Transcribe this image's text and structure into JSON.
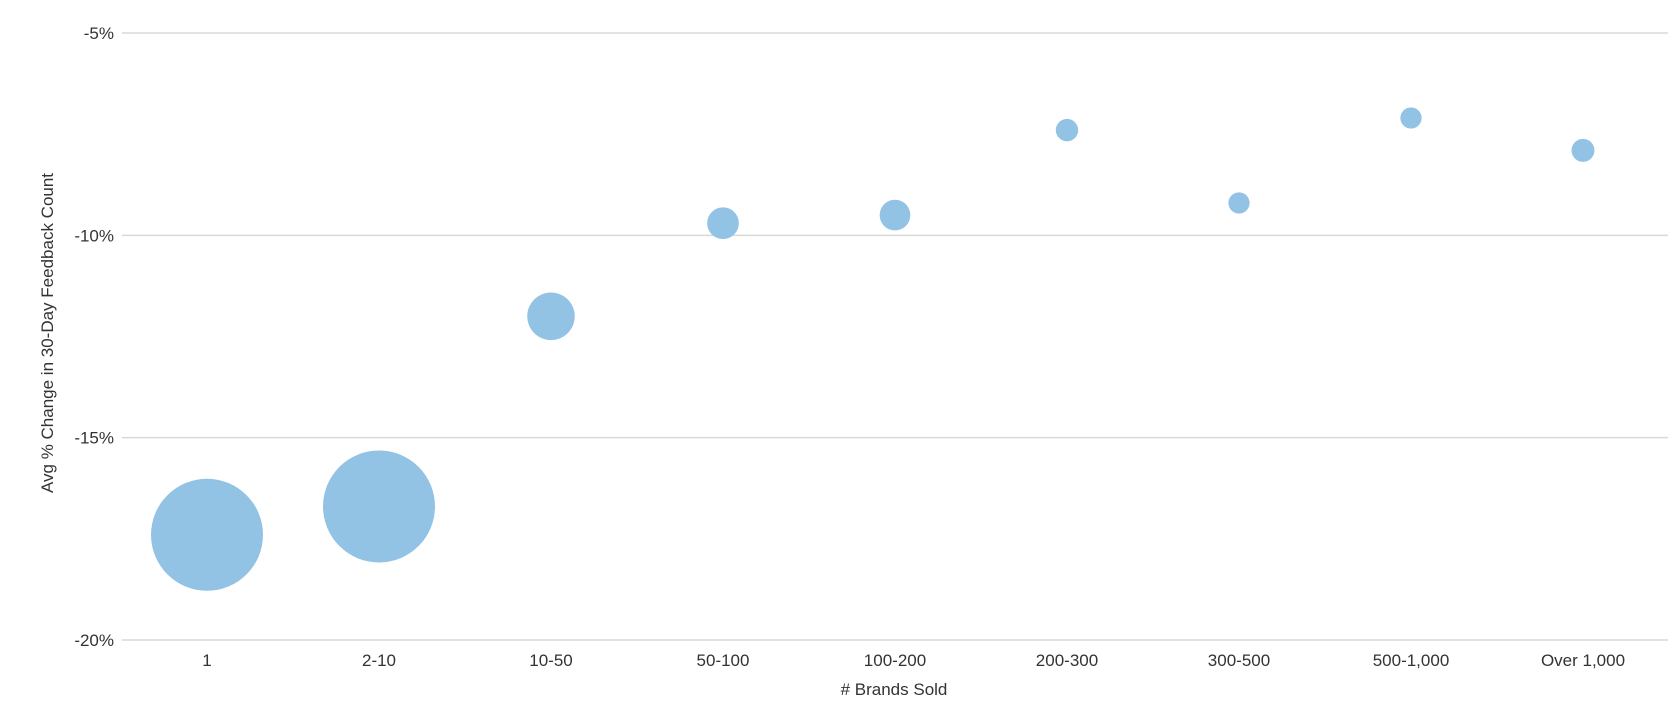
{
  "chart_data": {
    "type": "bubble",
    "title": "",
    "xlabel": "# Brands Sold",
    "ylabel": "Avg % Change in 30-Day Feedback Count",
    "categories": [
      "1",
      "2-10",
      "10-50",
      "50-100",
      "100-200",
      "200-300",
      "300-500",
      "500-1,000",
      "Over 1,000"
    ],
    "y_ticks": [
      -5,
      -10,
      -15,
      -20
    ],
    "y_tick_labels": [
      "-5%",
      "-10%",
      "-15%",
      "-20%"
    ],
    "ylim": [
      -20,
      -5
    ],
    "grid": "horizontal",
    "legend": "none",
    "bubble_color": "#92c3e4",
    "series": [
      {
        "points": [
          {
            "x": "1",
            "y": -17.4,
            "size": 100
          },
          {
            "x": "2-10",
            "y": -16.7,
            "size": 100
          },
          {
            "x": "10-50",
            "y": -12.0,
            "size": 18
          },
          {
            "x": "50-100",
            "y": -9.7,
            "size": 8
          },
          {
            "x": "100-200",
            "y": -9.5,
            "size": 7.5
          },
          {
            "x": "200-300",
            "y": -7.4,
            "size": 4
          },
          {
            "x": "300-500",
            "y": -9.2,
            "size": 3.6
          },
          {
            "x": "500-1,000",
            "y": -7.1,
            "size": 3.6
          },
          {
            "x": "Over 1,000",
            "y": -7.9,
            "size": 4.2
          }
        ]
      }
    ]
  }
}
